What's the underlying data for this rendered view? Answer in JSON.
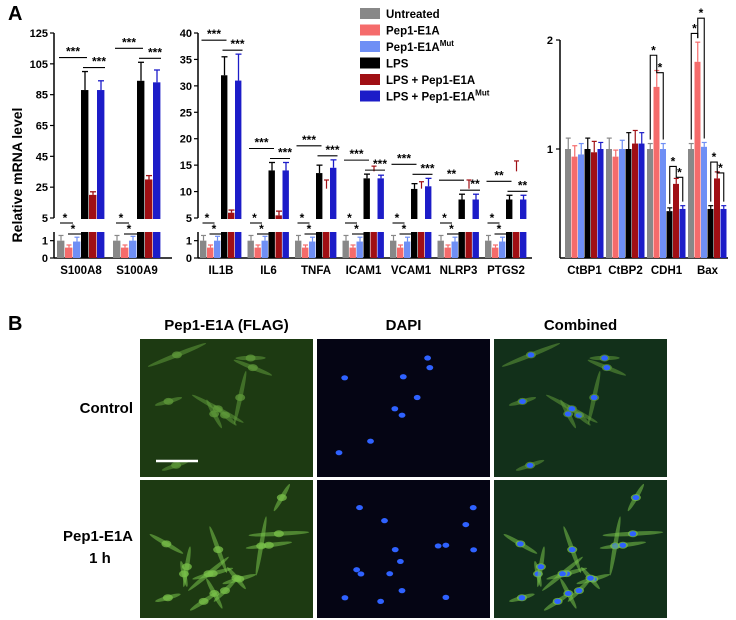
{
  "panel_labels": {
    "a": "A",
    "b": "B"
  },
  "ylabel": "Relative mRNA level",
  "colors": {
    "Untreated": "#888888",
    "Pep1-E1A": "#f56b6b",
    "Pep1-E1AMut": "#6f8ff5",
    "LPS": "#000000",
    "LPS + Pep1-E1A": "#a00f14",
    "LPS + Pep1-E1AMut": "#1c1cc8"
  },
  "legend": [
    {
      "key": "Untreated",
      "main": "Untreated",
      "sup": ""
    },
    {
      "key": "Pep1-E1A",
      "main": "Pep1-E1A",
      "sup": ""
    },
    {
      "key": "Pep1-E1AMut",
      "main": "Pep1-E1A",
      "sup": "Mut"
    },
    {
      "key": "LPS",
      "main": "LPS",
      "sup": ""
    },
    {
      "key": "LPS + Pep1-E1A",
      "main": "LPS + Pep1-E1A",
      "sup": ""
    },
    {
      "key": "LPS + Pep1-E1AMut",
      "main": "LPS + Pep1-E1A",
      "sup": "Mut"
    }
  ],
  "chart_data": [
    {
      "type": "bar",
      "id": "chart1",
      "categories": [
        "S100A8",
        "S100A9"
      ],
      "series_keys": [
        "Untreated",
        "Pep1-E1A",
        "Pep1-E1AMut",
        "LPS",
        "LPS + Pep1-E1A",
        "LPS + Pep1-E1AMut"
      ],
      "values": [
        [
          1.0,
          0.6,
          0.95,
          88,
          20,
          88
        ],
        [
          1.0,
          0.6,
          1.0,
          94,
          30,
          93
        ]
      ],
      "errors": [
        [
          0.3,
          0.15,
          0.25,
          12,
          2,
          6
        ],
        [
          0.3,
          0.15,
          0.25,
          12,
          2.5,
          8
        ]
      ],
      "y_broken": true,
      "ylim_lower": [
        0,
        1.5
      ],
      "ylim_upper": [
        5,
        125
      ],
      "yticks_lower": [
        "0",
        "1"
      ],
      "yticks_upper": [
        "5",
        "25",
        "45",
        "65",
        "85",
        "105",
        "125"
      ],
      "significance": [
        [
          "*",
          "*",
          "***",
          "***"
        ],
        [
          "*",
          "*",
          "***",
          "***"
        ]
      ]
    },
    {
      "type": "bar",
      "id": "chart2",
      "categories": [
        "IL1B",
        "IL6",
        "TNFA",
        "ICAM1",
        "VCAM1",
        "NLRP3",
        "PTGS2"
      ],
      "series_keys": [
        "Untreated",
        "Pep1-E1A",
        "Pep1-E1AMut",
        "LPS",
        "LPS + Pep1-E1A",
        "LPS + Pep1-E1AMut"
      ],
      "values": [
        [
          1.0,
          0.6,
          1.0,
          32,
          6,
          31
        ],
        [
          1.0,
          0.6,
          1.0,
          14,
          5.5,
          14
        ],
        [
          1.0,
          0.6,
          0.95,
          13.5,
          4,
          14.5
        ],
        [
          1.0,
          0.6,
          0.95,
          12.5,
          5,
          12.5
        ],
        [
          1.0,
          0.6,
          0.95,
          10.5,
          4,
          11
        ],
        [
          1.0,
          0.6,
          0.95,
          8.5,
          4,
          8.5
        ],
        [
          1.0,
          0.6,
          0.95,
          8.5,
          5,
          8.5
        ]
      ],
      "errors": [
        [
          0.3,
          0.15,
          0.25,
          3.5,
          0.5,
          5
        ],
        [
          0.3,
          0.15,
          0.25,
          1.5,
          0.8,
          1.5
        ],
        [
          0.3,
          0.15,
          0.25,
          1.5,
          0.5,
          1.5
        ],
        [
          0.3,
          0.15,
          0.25,
          0.8,
          0.3,
          0.6
        ],
        [
          0.3,
          0.15,
          0.25,
          1.0,
          0.4,
          1.5
        ],
        [
          0.3,
          0.15,
          0.25,
          1.0,
          0.5,
          1.0
        ],
        [
          0.3,
          0.15,
          0.25,
          0.8,
          0.6,
          0.8
        ]
      ],
      "y_broken": true,
      "ylim_lower": [
        0,
        1.5
      ],
      "ylim_upper": [
        5,
        40
      ],
      "yticks_lower": [
        "0",
        "1"
      ],
      "yticks_upper": [
        "5",
        "10",
        "15",
        "20",
        "25",
        "30",
        "35",
        "40"
      ],
      "significance": [
        [
          "*",
          "*",
          "***",
          "***"
        ],
        [
          "*",
          "*",
          "***",
          "***"
        ],
        [
          "*",
          "*",
          "***",
          "***"
        ],
        [
          "*",
          "*",
          "***",
          "***"
        ],
        [
          "*",
          "*",
          "***",
          "***"
        ],
        [
          "*",
          "*",
          "**",
          "**"
        ],
        [
          "*",
          "*",
          "**",
          "**"
        ]
      ]
    },
    {
      "type": "bar",
      "id": "chart3",
      "categories": [
        "CtBP1",
        "CtBP2",
        "CDH1",
        "Bax"
      ],
      "series_keys": [
        "Untreated",
        "Pep1-E1A",
        "Pep1-E1AMut",
        "LPS",
        "LPS + Pep1-E1A",
        "LPS + Pep1-E1AMut"
      ],
      "values": [
        [
          1.0,
          0.93,
          0.95,
          1.0,
          0.97,
          1.0
        ],
        [
          1.0,
          0.93,
          1.0,
          1.0,
          1.05,
          1.05
        ],
        [
          1.0,
          1.57,
          1.0,
          0.43,
          0.68,
          0.45
        ],
        [
          1.0,
          1.8,
          1.02,
          0.45,
          0.73,
          0.45
        ]
      ],
      "errors": [
        [
          0.1,
          0.1,
          0.1,
          0.1,
          0.1,
          0.06
        ],
        [
          0.1,
          0.06,
          0.08,
          0.15,
          0.12,
          0.1
        ],
        [
          0.05,
          0.15,
          0.05,
          0.03,
          0.05,
          0.03
        ],
        [
          0.05,
          0.18,
          0.04,
          0.03,
          0.06,
          0.03
        ]
      ],
      "ylim": [
        0,
        2
      ],
      "yticks": [
        "1",
        "2"
      ],
      "brackets": [
        {
          "cat": 2,
          "from": 0,
          "to": 1,
          "label": "*",
          "y": 1.86
        },
        {
          "cat": 2,
          "from": 1,
          "to": 2,
          "label": "*",
          "y": 1.7
        },
        {
          "cat": 2,
          "from": 3,
          "to": 4,
          "label": "*",
          "y": 0.84
        },
        {
          "cat": 2,
          "from": 4,
          "to": 5,
          "label": "*",
          "y": 0.74
        },
        {
          "cat": 3,
          "from": 0,
          "to": 1,
          "label": "*",
          "y": 2.06
        },
        {
          "cat": 3,
          "from": 1,
          "to": 2,
          "label": "*",
          "y": 2.2
        },
        {
          "cat": 3,
          "from": 3,
          "to": 4,
          "label": "*",
          "y": 0.88
        },
        {
          "cat": 3,
          "from": 4,
          "to": 5,
          "label": "*",
          "y": 0.78
        }
      ]
    }
  ],
  "microscopy": {
    "columns": [
      "Pep1-E1A (FLAG)",
      "DAPI",
      "Combined"
    ],
    "rows": [
      {
        "main": "Control",
        "sub": ""
      },
      {
        "main": "Pep1-E1A",
        "sub": "1 h"
      }
    ]
  }
}
